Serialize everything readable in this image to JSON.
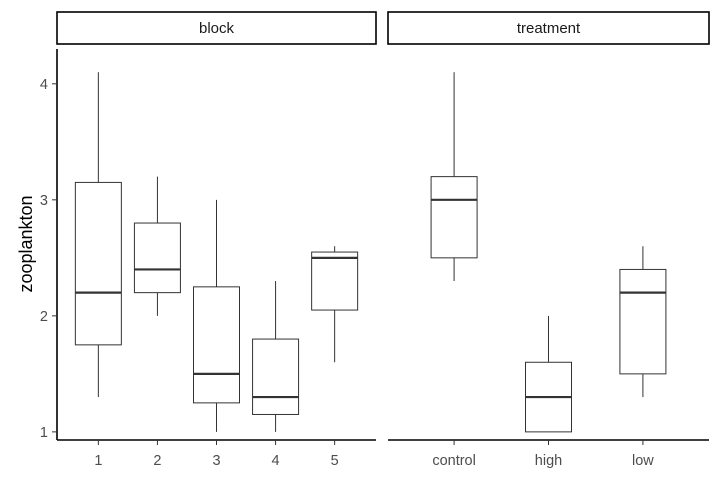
{
  "chart_data": {
    "type": "boxplot",
    "ylabel": "zooplankton",
    "ylim": [
      0.93,
      4.3
    ],
    "y_ticks": [
      1,
      2,
      3,
      4
    ],
    "grid": false,
    "panels": [
      {
        "strip_label": "block",
        "categories": [
          "1",
          "2",
          "3",
          "4",
          "5"
        ],
        "boxes": [
          {
            "min": 1.3,
            "q1": 1.75,
            "median": 2.2,
            "q3": 3.15,
            "max": 4.1
          },
          {
            "min": 2.0,
            "q1": 2.2,
            "median": 2.4,
            "q3": 2.8,
            "max": 3.2
          },
          {
            "min": 1.0,
            "q1": 1.25,
            "median": 1.5,
            "q3": 2.25,
            "max": 3.0
          },
          {
            "min": 1.0,
            "q1": 1.15,
            "median": 1.3,
            "q3": 1.8,
            "max": 2.3
          },
          {
            "min": 1.6,
            "q1": 2.05,
            "median": 2.5,
            "q3": 2.55,
            "max": 2.6
          }
        ]
      },
      {
        "strip_label": "treatment",
        "categories": [
          "control",
          "high",
          "low"
        ],
        "boxes": [
          {
            "min": 2.3,
            "q1": 2.5,
            "median": 3.0,
            "q3": 3.2,
            "max": 4.1
          },
          {
            "min": 1.0,
            "q1": 1.0,
            "median": 1.3,
            "q3": 1.6,
            "max": 2.0
          },
          {
            "min": 1.3,
            "q1": 1.5,
            "median": 2.2,
            "q3": 2.4,
            "max": 2.6
          }
        ]
      }
    ]
  }
}
